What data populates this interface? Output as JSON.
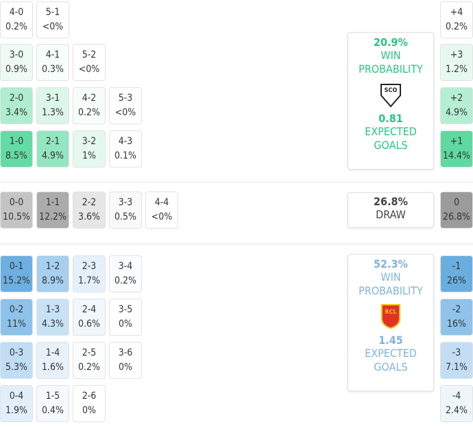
{
  "home": {
    "rows": [
      [
        {
          "score": "4-0",
          "prob": "0.2%",
          "color": "#ffffff"
        },
        {
          "score": "5-1",
          "prob": "<0%",
          "color": "#ffffff"
        }
      ],
      [
        {
          "score": "3-0",
          "prob": "0.9%",
          "color": "#eefbf4"
        },
        {
          "score": "4-1",
          "prob": "0.3%",
          "color": "#f7fdfa"
        },
        {
          "score": "5-2",
          "prob": "<0%",
          "color": "#ffffff"
        }
      ],
      [
        {
          "score": "2-0",
          "prob": "3.4%",
          "color": "#aeedcf"
        },
        {
          "score": "3-1",
          "prob": "1.3%",
          "color": "#dcf6e9"
        },
        {
          "score": "4-2",
          "prob": "0.2%",
          "color": "#f7fdfa"
        },
        {
          "score": "5-3",
          "prob": "<0%",
          "color": "#ffffff"
        }
      ],
      [
        {
          "score": "1-0",
          "prob": "8.5%",
          "color": "#64dba3"
        },
        {
          "score": "2-1",
          "prob": "4.9%",
          "color": "#93e6bf"
        },
        {
          "score": "3-2",
          "prob": "1%",
          "color": "#e4f8ee"
        },
        {
          "score": "4-3",
          "prob": "0.1%",
          "color": "#ffffff"
        }
      ]
    ]
  },
  "draw": {
    "cells": [
      {
        "score": "0-0",
        "prob": "10.5%",
        "color": "#c4c4c4"
      },
      {
        "score": "1-1",
        "prob": "12.2%",
        "color": "#ababab"
      },
      {
        "score": "2-2",
        "prob": "3.6%",
        "color": "#e6e6e6"
      },
      {
        "score": "3-3",
        "prob": "0.5%",
        "color": "#f9f9f9"
      },
      {
        "score": "4-4",
        "prob": "<0%",
        "color": "#ffffff"
      }
    ]
  },
  "away": {
    "rows": [
      [
        {
          "score": "0-1",
          "prob": "15.2%",
          "color": "#6cafe0"
        },
        {
          "score": "1-2",
          "prob": "8.9%",
          "color": "#a6cff0"
        },
        {
          "score": "2-3",
          "prob": "1.7%",
          "color": "#e4f0fa"
        },
        {
          "score": "3-4",
          "prob": "0.2%",
          "color": "#fafcfe"
        }
      ],
      [
        {
          "score": "0-2",
          "prob": "11%",
          "color": "#8dc2ea"
        },
        {
          "score": "1-3",
          "prob": "4.3%",
          "color": "#c8e2f5"
        },
        {
          "score": "2-4",
          "prob": "0.6%",
          "color": "#f1f7fc"
        },
        {
          "score": "3-5",
          "prob": "0%",
          "color": "#ffffff"
        }
      ],
      [
        {
          "score": "0-3",
          "prob": "5.3%",
          "color": "#c0ddf4"
        },
        {
          "score": "1-4",
          "prob": "1.6%",
          "color": "#e6f1fa"
        },
        {
          "score": "2-5",
          "prob": "0.2%",
          "color": "#fafcfe"
        },
        {
          "score": "3-6",
          "prob": "0%",
          "color": "#ffffff"
        }
      ],
      [
        {
          "score": "0-4",
          "prob": "1.9%",
          "color": "#e2effa"
        },
        {
          "score": "1-5",
          "prob": "0.4%",
          "color": "#f5f9fd"
        },
        {
          "score": "2-6",
          "prob": "0%",
          "color": "#ffffff"
        }
      ]
    ]
  },
  "margins": [
    {
      "label": "+4",
      "prob": "0.2%",
      "color": "#ffffff"
    },
    {
      "label": "+3",
      "prob": "1.2%",
      "color": "#e6f9ef"
    },
    {
      "label": "+2",
      "prob": "4.9%",
      "color": "#b4efd3"
    },
    {
      "label": "+1",
      "prob": "14.4%",
      "color": "#5fd9a0"
    },
    {
      "label": "0",
      "prob": "26.8%",
      "color": "#9b9b9b"
    },
    {
      "label": "-1",
      "prob": "26%",
      "color": "#6aaee0"
    },
    {
      "label": "-2",
      "prob": "16%",
      "color": "#8fc3ea"
    },
    {
      "label": "-3",
      "prob": "7.1%",
      "color": "#c3def4"
    },
    {
      "label": "-4",
      "prob": "2.4%",
      "color": "#eef6fc"
    }
  ],
  "panels": [
    {
      "prob": "20.9%",
      "label": "WIN PROBABILITY",
      "logo": "SCO",
      "xg": "0.81",
      "xg_label": "EXPECTED GOALS",
      "color": "#2bc47f"
    },
    {
      "prob": "26.8%",
      "label": "DRAW",
      "color": "#444444"
    },
    {
      "prob": "52.3%",
      "label": "WIN PROBABILITY",
      "logo": "RCL",
      "xg": "1.45",
      "xg_label": "EXPECTED GOALS",
      "color": "#7fb3dc"
    }
  ]
}
